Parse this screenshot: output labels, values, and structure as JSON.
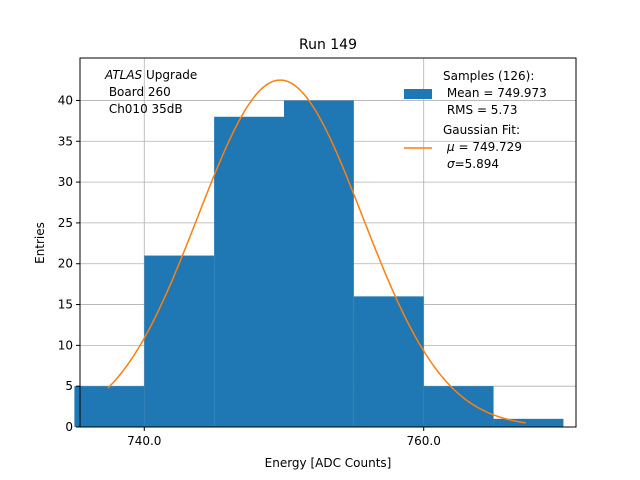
{
  "chart_data": {
    "type": "bar",
    "title": "Run 149",
    "xlabel": "Energy [ADC Counts]",
    "ylabel": "Entries",
    "xlim": [
      735.4,
      770.9
    ],
    "ylim": [
      0,
      45.2
    ],
    "grid": true,
    "x_ticks": [
      740,
      760
    ],
    "x_tick_labels": [
      "740.0",
      "760.0"
    ],
    "y_ticks": [
      0,
      5,
      10,
      15,
      20,
      25,
      30,
      35,
      40
    ],
    "y_tick_labels": [
      "0",
      "5",
      "10",
      "15",
      "20",
      "25",
      "30",
      "35",
      "40"
    ],
    "histogram": {
      "bin_edges": [
        735,
        740,
        745,
        750,
        755,
        760,
        765,
        770
      ],
      "counts": [
        5,
        21,
        38,
        40,
        16,
        5,
        1
      ],
      "color": "#1f77b4"
    },
    "gaussian_fit": {
      "mu": 749.729,
      "sigma": 5.894,
      "amplitude": 42.5,
      "x_range": [
        737.4,
        767.3
      ],
      "color": "#ff7f0e"
    },
    "annotation": {
      "line1_italic": "ATLAS",
      "line1_rest": " Upgrade",
      "line2": " Board 260",
      "line3": " Ch010 35dB"
    },
    "legend": {
      "placement": "top-right",
      "samples": {
        "line1": "Samples (126):",
        "line2": " Mean = 749.973",
        "line3": " RMS = 5.73"
      },
      "fit": {
        "line1": "Gaussian Fit:",
        "mu_symbol": "μ",
        "mu_value": " = 749.729",
        "sigma_symbol": "σ",
        "sigma_value": "=5.894"
      }
    }
  }
}
